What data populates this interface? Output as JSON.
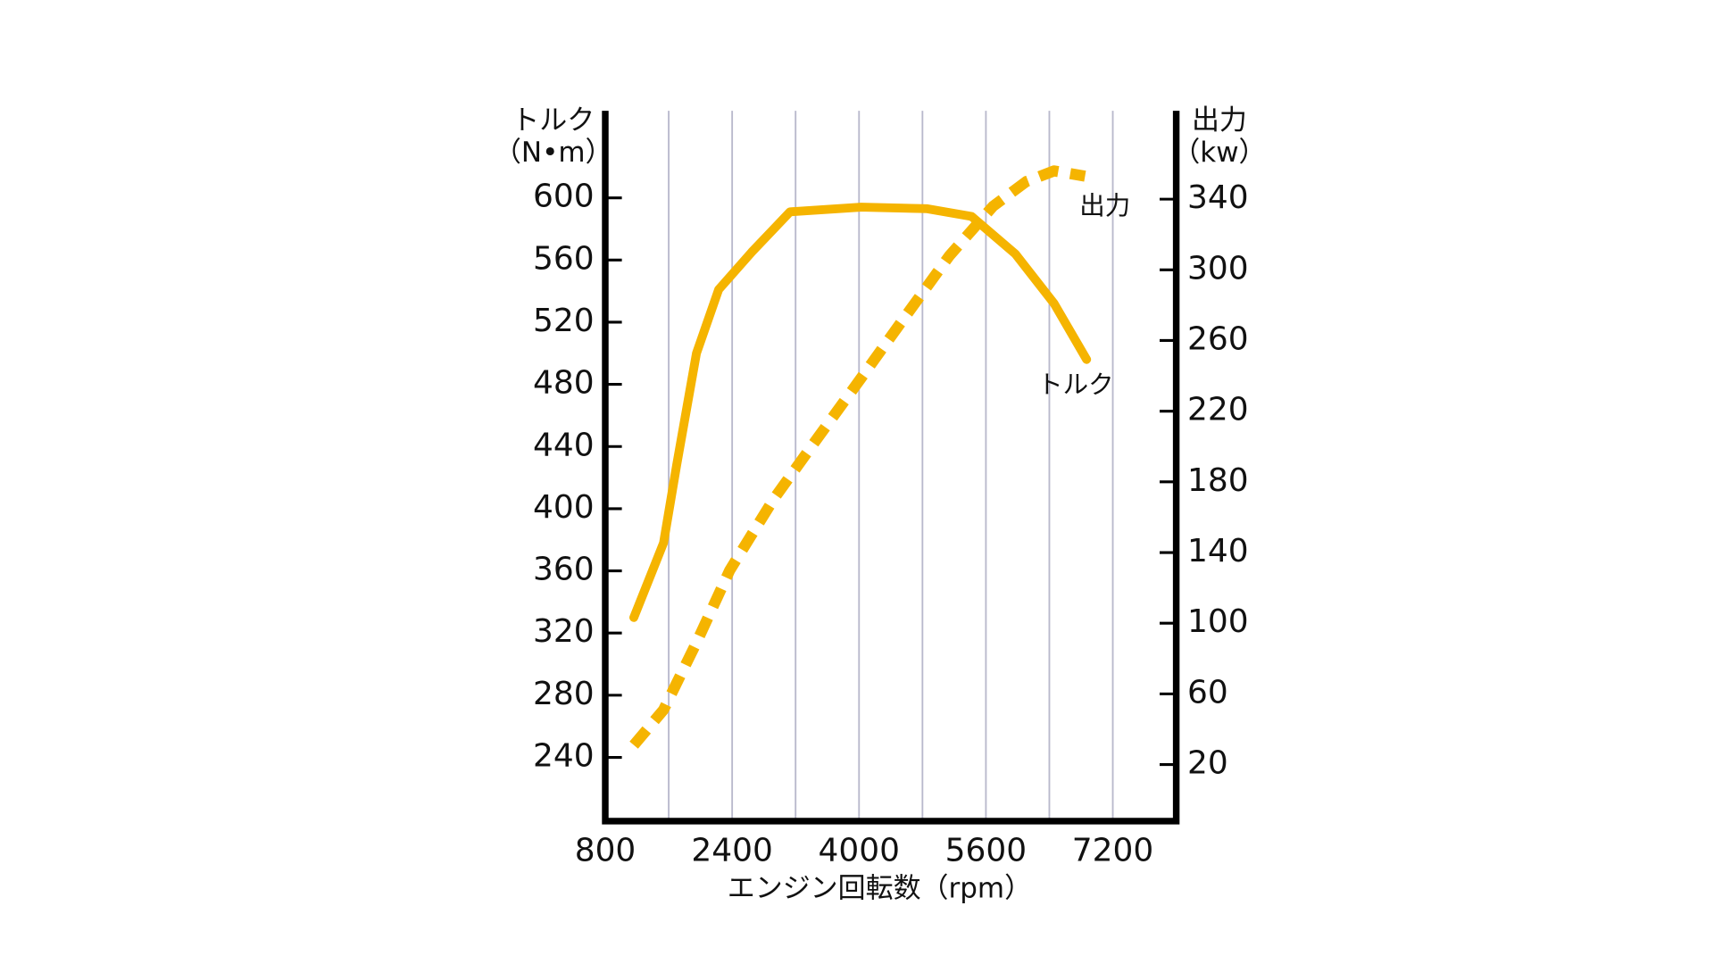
{
  "chart_data": {
    "type": "line",
    "y_title": "トルク",
    "y_unit": "（N•m）",
    "y2_title": "出力",
    "y2_unit": "（kw）",
    "x_title": "エンジン回転数（rpm）",
    "xlim": [
      800,
      8000
    ],
    "xticks": [
      800,
      2400,
      4000,
      5600,
      7200
    ],
    "xgrid": [
      1600,
      2400,
      3200,
      4000,
      4800,
      5600,
      6400,
      7200
    ],
    "ylim": [
      199,
      656
    ],
    "yticks": [
      240,
      280,
      320,
      360,
      400,
      440,
      480,
      520,
      560,
      600
    ],
    "y2lim": [
      -12,
      390
    ],
    "y2ticks": [
      20,
      60,
      100,
      140,
      180,
      220,
      260,
      300,
      340
    ],
    "series": [
      {
        "name": "トルク",
        "color": "#f5b400",
        "dashed": false,
        "x": [
          1160,
          1535,
          1700,
          1950,
          2230,
          2645,
          3130,
          4030,
          4860,
          5420,
          5970,
          6460,
          6870
        ],
        "values": [
          330,
          378,
          428,
          500,
          541,
          565,
          591,
          594,
          593,
          588,
          564,
          532,
          496
        ]
      },
      {
        "name": "出力",
        "color": "#f5b400",
        "dashed": true,
        "axis": "y2",
        "x": [
          1160,
          1535,
          1950,
          2370,
          2920,
          3480,
          4030,
          4590,
          5140,
          5690,
          6110,
          6460,
          6850
        ],
        "values": [
          31,
          51,
          89,
          130,
          170,
          205,
          239,
          274,
          308,
          336,
          350,
          356,
          353
        ]
      }
    ]
  }
}
